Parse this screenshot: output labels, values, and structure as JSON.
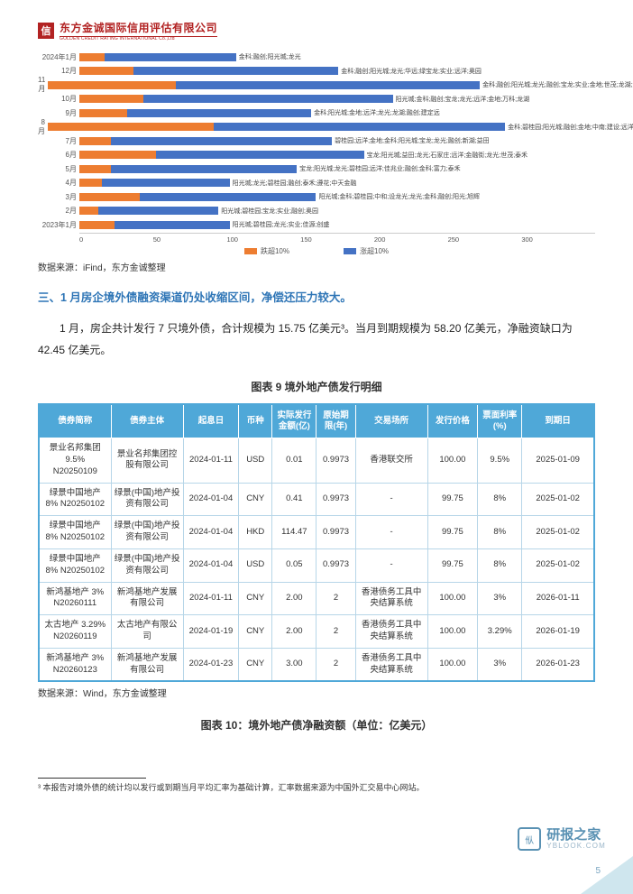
{
  "header": {
    "logo_char": "信",
    "company": "东方金诚国际信用评估有限公司",
    "company_en": "GOLDEN CREDIT RATING INTERNATIONAL Co.,Ltd"
  },
  "chart": {
    "type": "stacked-horizontal-bar",
    "x_max": 300,
    "x_ticks": [
      0,
      50,
      100,
      150,
      200,
      250,
      300
    ],
    "colors": {
      "series_a": "#ed7d31",
      "series_b": "#4472c4"
    },
    "legend": {
      "a": "跌超10%",
      "b": "涨超10%"
    },
    "rows": [
      {
        "label": "2024年1月",
        "a": 16,
        "b": 82,
        "text": "金科;融创;阳光城;龙光"
      },
      {
        "label": "12月",
        "a": 34,
        "b": 128,
        "text": "金科;融创;阳光城;龙光;华远;绿宝龙;实业;远洋;奥园"
      },
      {
        "label": "11月",
        "a": 80,
        "b": 190,
        "text": "金科;融创;阳光城;龙光;融创;宝龙;实业;金地;世茂;龙湖;远洋"
      },
      {
        "label": "10月",
        "a": 40,
        "b": 156,
        "text": "阳光城;金科;融创;宝龙;龙光;远洋;金地;万科;龙湖"
      },
      {
        "label": "9月",
        "a": 30,
        "b": 115,
        "text": "金科;阳光城;金地;远洋;龙光;龙湖;融创;建定远"
      },
      {
        "label": "8月",
        "a": 104,
        "b": 182,
        "text": "金科;碧桂园;阳光城;融创;金地;中南;建设;远洋;龙光;益田"
      },
      {
        "label": "7月",
        "a": 20,
        "b": 138,
        "text": "碧桂园;远洋;金地;金科;阳光城;宝龙;龙光;融创;新湖;益田"
      },
      {
        "label": "6月",
        "a": 48,
        "b": 130,
        "text": "宝龙;阳光城;益田;龙光;石家庄;远洋;金融街;龙光;世茂;泰禾"
      },
      {
        "label": "5月",
        "a": 20,
        "b": 116,
        "text": "宝龙;阳光城;龙光;碧桂园;远洋;佳兆业;融创;金科;富力;泰禾"
      },
      {
        "label": "4月",
        "a": 14,
        "b": 80,
        "text": "阳光城;龙光;碧桂园;融创;泰禾;遵花;中天金融"
      },
      {
        "label": "3月",
        "a": 38,
        "b": 110,
        "text": "阳光城;金科;碧桂园;中和;设龙光;龙光;金科;融创;阳光;旭辉"
      },
      {
        "label": "2月",
        "a": 12,
        "b": 75,
        "text": "阳光城;碧桂园;宝龙;实业;融创;奥园"
      },
      {
        "label": "2023年1月",
        "a": 22,
        "b": 72,
        "text": "阳光城;碧桂园;龙光;实业;佳源;创盛"
      }
    ],
    "source": "数据来源：iFind，东方金诚整理"
  },
  "section": {
    "title": "三、1 月房企境外债融资渠道仍处收缩区间，净偿还压力较大。",
    "para": "1 月，房企共计发行 7 只境外债，合计规模为 15.75 亿美元³。当月到期规模为 58.20 亿美元，净融资缺口为 42.45 亿美元。"
  },
  "fig9": {
    "title": "图表 9  境外地产债发行明细",
    "columns": [
      "债券简称",
      "债券主体",
      "起息日",
      "币种",
      "实际发行金额(亿)",
      "原始期限(年)",
      "交易场所",
      "发行价格",
      "票面利率(%)",
      "到期日"
    ],
    "rows": [
      [
        "景业名邦集团 9.5% N20250109",
        "景业名邦集团控股有限公司",
        "2024-01-11",
        "USD",
        "0.01",
        "0.9973",
        "香港联交所",
        "100.00",
        "9.5%",
        "2025-01-09"
      ],
      [
        "绿景中国地产 8% N20250102",
        "绿景(中国)地产投资有限公司",
        "2024-01-04",
        "CNY",
        "0.41",
        "0.9973",
        "-",
        "99.75",
        "8%",
        "2025-01-02"
      ],
      [
        "绿景中国地产 8% N20250102",
        "绿景(中国)地产投资有限公司",
        "2024-01-04",
        "HKD",
        "114.47",
        "0.9973",
        "-",
        "99.75",
        "8%",
        "2025-01-02"
      ],
      [
        "绿景中国地产 8% N20250102",
        "绿景(中国)地产投资有限公司",
        "2024-01-04",
        "USD",
        "0.05",
        "0.9973",
        "-",
        "99.75",
        "8%",
        "2025-01-02"
      ],
      [
        "新鸿基地产 3% N20260111",
        "新鸿基地产发展有限公司",
        "2024-01-11",
        "CNY",
        "2.00",
        "2",
        "香港债务工具中央结算系统",
        "100.00",
        "3%",
        "2026-01-11"
      ],
      [
        "太古地产 3.29% N20260119",
        "太古地产有限公司",
        "2024-01-19",
        "CNY",
        "2.00",
        "2",
        "香港债务工具中央结算系统",
        "100.00",
        "3.29%",
        "2026-01-19"
      ],
      [
        "新鸿基地产 3% N20260123",
        "新鸿基地产发展有限公司",
        "2024-01-23",
        "CNY",
        "3.00",
        "2",
        "香港债务工具中央结算系统",
        "100.00",
        "3%",
        "2026-01-23"
      ]
    ],
    "source": "数据来源：Wind，东方金诚整理"
  },
  "fig10_title": "图表 10：境外地产债净融资额（单位：亿美元）",
  "footnote": "³ 本报告对境外债的统计均以发行或到期当月平均汇率为基础计算，汇率数据来源为中国外汇交易中心网站。",
  "page_num": "5",
  "watermark": {
    "icon": "㐺",
    "main": "研报之家",
    "sub": "YBLOOK.COM"
  }
}
